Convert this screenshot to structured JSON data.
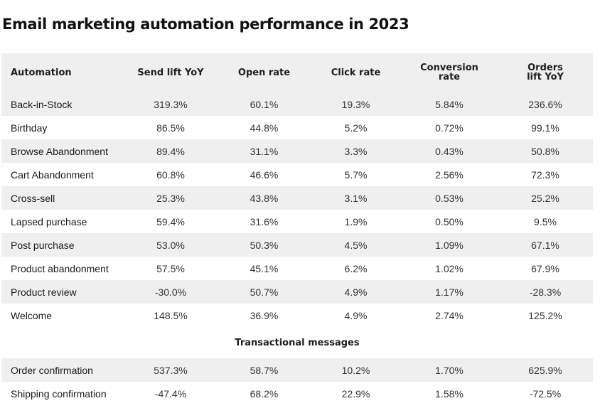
{
  "title": "Email marketing automation performance in 2023",
  "columns": [
    "Automation",
    "Send lift YoY",
    "Open rate",
    "Click rate",
    "Conversion\nrate",
    "Orders\nlift YoY"
  ],
  "rows": [
    {
      "name": "Back-in-Stock",
      "send_lift": "319.3%",
      "open_rate": "60.1%",
      "click_rate": "19.3%",
      "conversion_rate": "5.84%",
      "orders_lift": "236.6%"
    },
    {
      "name": "Birthday",
      "send_lift": "86.5%",
      "open_rate": "44.8%",
      "click_rate": "5.2%",
      "conversion_rate": "0.72%",
      "orders_lift": "99.1%"
    },
    {
      "name": "Browse Abandonment",
      "send_lift": "89.4%",
      "open_rate": "31.1%",
      "click_rate": "3.3%",
      "conversion_rate": "0.43%",
      "orders_lift": "50.8%"
    },
    {
      "name": "Cart Abandonment",
      "send_lift": "60.8%",
      "open_rate": "46.6%",
      "click_rate": "5.7%",
      "conversion_rate": "2.56%",
      "orders_lift": "72.3%"
    },
    {
      "name": "Cross-sell",
      "send_lift": "25.3%",
      "open_rate": "43.8%",
      "click_rate": "3.1%",
      "conversion_rate": "0.53%",
      "orders_lift": "25.2%"
    },
    {
      "name": "Lapsed purchase",
      "send_lift": "59.4%",
      "open_rate": "31.6%",
      "click_rate": "1.9%",
      "conversion_rate": "0.50%",
      "orders_lift": "9.5%"
    },
    {
      "name": "Post purchase",
      "send_lift": "53.0%",
      "open_rate": "50.3%",
      "click_rate": "4.5%",
      "conversion_rate": "1.09%",
      "orders_lift": "67.1%"
    },
    {
      "name": "Product abandonment",
      "send_lift": "57.5%",
      "open_rate": "45.1%",
      "click_rate": "6.2%",
      "conversion_rate": "1.02%",
      "orders_lift": "67.9%"
    },
    {
      "name": "Product review",
      "send_lift": "-30.0%",
      "open_rate": "50.7%",
      "click_rate": "4.9%",
      "conversion_rate": "1.17%",
      "orders_lift": "-28.3%"
    },
    {
      "name": "Welcome",
      "send_lift": "148.5%",
      "open_rate": "36.9%",
      "click_rate": "4.9%",
      "conversion_rate": "2.74%",
      "orders_lift": "125.2%"
    }
  ],
  "section_label": "Transactional messages",
  "transactional_rows": [
    {
      "name": "Order confirmation",
      "send_lift": "537.3%",
      "open_rate": "58.7%",
      "click_rate": "10.2%",
      "conversion_rate": "1.70%",
      "orders_lift": "625.9%"
    },
    {
      "name": "Shipping confirmation",
      "send_lift": "-47.4%",
      "open_rate": "68.2%",
      "click_rate": "22.9%",
      "conversion_rate": "1.58%",
      "orders_lift": "-72.5%"
    }
  ]
}
